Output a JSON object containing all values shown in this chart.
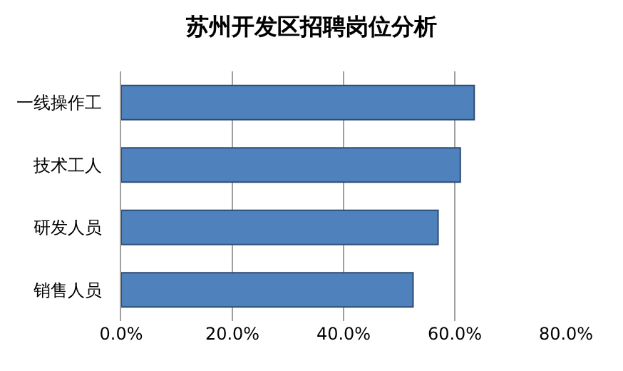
{
  "chart_data": {
    "type": "bar",
    "orientation": "horizontal",
    "title": "苏州开发区招聘岗位分析",
    "categories": [
      "一线操作工",
      "技术工人",
      "研发人员",
      "销售人员"
    ],
    "values": [
      63.5,
      61,
      57,
      52.5
    ],
    "color": "#4f81bd",
    "xlim": [
      0,
      80
    ],
    "xticks": [
      {
        "value": 0,
        "label": "0.0%"
      },
      {
        "value": 20,
        "label": "20.0%"
      },
      {
        "value": 40,
        "label": "40.0%"
      },
      {
        "value": 60,
        "label": "60.0%"
      },
      {
        "value": 80,
        "label": "80.0%"
      }
    ],
    "grid": "x",
    "legend": false
  }
}
